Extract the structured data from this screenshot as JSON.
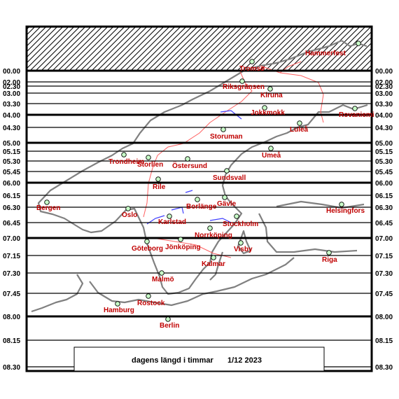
{
  "caption": {
    "title": "dagens längd i timmar",
    "date": "1/12 2023"
  },
  "hour_scale": [
    {
      "label": "00.00",
      "hours": 0.0,
      "major": true
    },
    {
      "label": "02.00",
      "hours": 2.0,
      "major": false
    },
    {
      "label": "02.30",
      "hours": 2.5,
      "major": false
    },
    {
      "label": "03.00",
      "hours": 3.0,
      "major": false
    },
    {
      "label": "03.30",
      "hours": 3.5,
      "major": false
    },
    {
      "label": "04.00",
      "hours": 4.0,
      "major": true
    },
    {
      "label": "04.30",
      "hours": 4.5,
      "major": false
    },
    {
      "label": "05.00",
      "hours": 5.0,
      "major": true
    },
    {
      "label": "05.15",
      "hours": 5.25,
      "major": false
    },
    {
      "label": "05.30",
      "hours": 5.5,
      "major": false
    },
    {
      "label": "05.45",
      "hours": 5.75,
      "major": false
    },
    {
      "label": "06.00",
      "hours": 6.0,
      "major": true
    },
    {
      "label": "06.15",
      "hours": 6.25,
      "major": false
    },
    {
      "label": "06.30",
      "hours": 6.5,
      "major": false
    },
    {
      "label": "06.45",
      "hours": 6.75,
      "major": false
    },
    {
      "label": "07.00",
      "hours": 7.0,
      "major": true
    },
    {
      "label": "07.15",
      "hours": 7.25,
      "major": false
    },
    {
      "label": "07.30",
      "hours": 7.5,
      "major": false
    },
    {
      "label": "07.45",
      "hours": 7.75,
      "major": false
    },
    {
      "label": "08.00",
      "hours": 8.0,
      "major": true
    },
    {
      "label": "08.15",
      "hours": 8.25,
      "major": false
    },
    {
      "label": "08.30",
      "hours": 8.5,
      "major": false
    }
  ],
  "cities": [
    {
      "name": "Tromsø"
    },
    {
      "name": "Hammerfest"
    },
    {
      "name": "Riksgränsen"
    },
    {
      "name": "Kiruna"
    },
    {
      "name": "Jokkmokk"
    },
    {
      "name": "Rovaniemi"
    },
    {
      "name": "Luleå"
    },
    {
      "name": "Storuman"
    },
    {
      "name": "Umeå"
    },
    {
      "name": "Trondheim"
    },
    {
      "name": "Storlien"
    },
    {
      "name": "Östersund"
    },
    {
      "name": "Sundsvall"
    },
    {
      "name": "Rile"
    },
    {
      "name": "Gävle"
    },
    {
      "name": "Borlänge"
    },
    {
      "name": "Bergen"
    },
    {
      "name": "Oslo"
    },
    {
      "name": "Helsingfors"
    },
    {
      "name": "Karlstad"
    },
    {
      "name": "Stockholm"
    },
    {
      "name": "Norrköping"
    },
    {
      "name": "Göteborg"
    },
    {
      "name": "Jönköping"
    },
    {
      "name": "Visby"
    },
    {
      "name": "Riga"
    },
    {
      "name": "Kalmar"
    },
    {
      "name": "Malmö"
    },
    {
      "name": "Rostock"
    },
    {
      "name": "Hamburg"
    },
    {
      "name": "Berlin"
    }
  ],
  "colors": {
    "frame": "#000000",
    "land_outline": "#808080",
    "border": "#ff6060",
    "lakes": "#4040ff",
    "city_label": "#c00000",
    "marker_fill": "#c8ffc8"
  }
}
